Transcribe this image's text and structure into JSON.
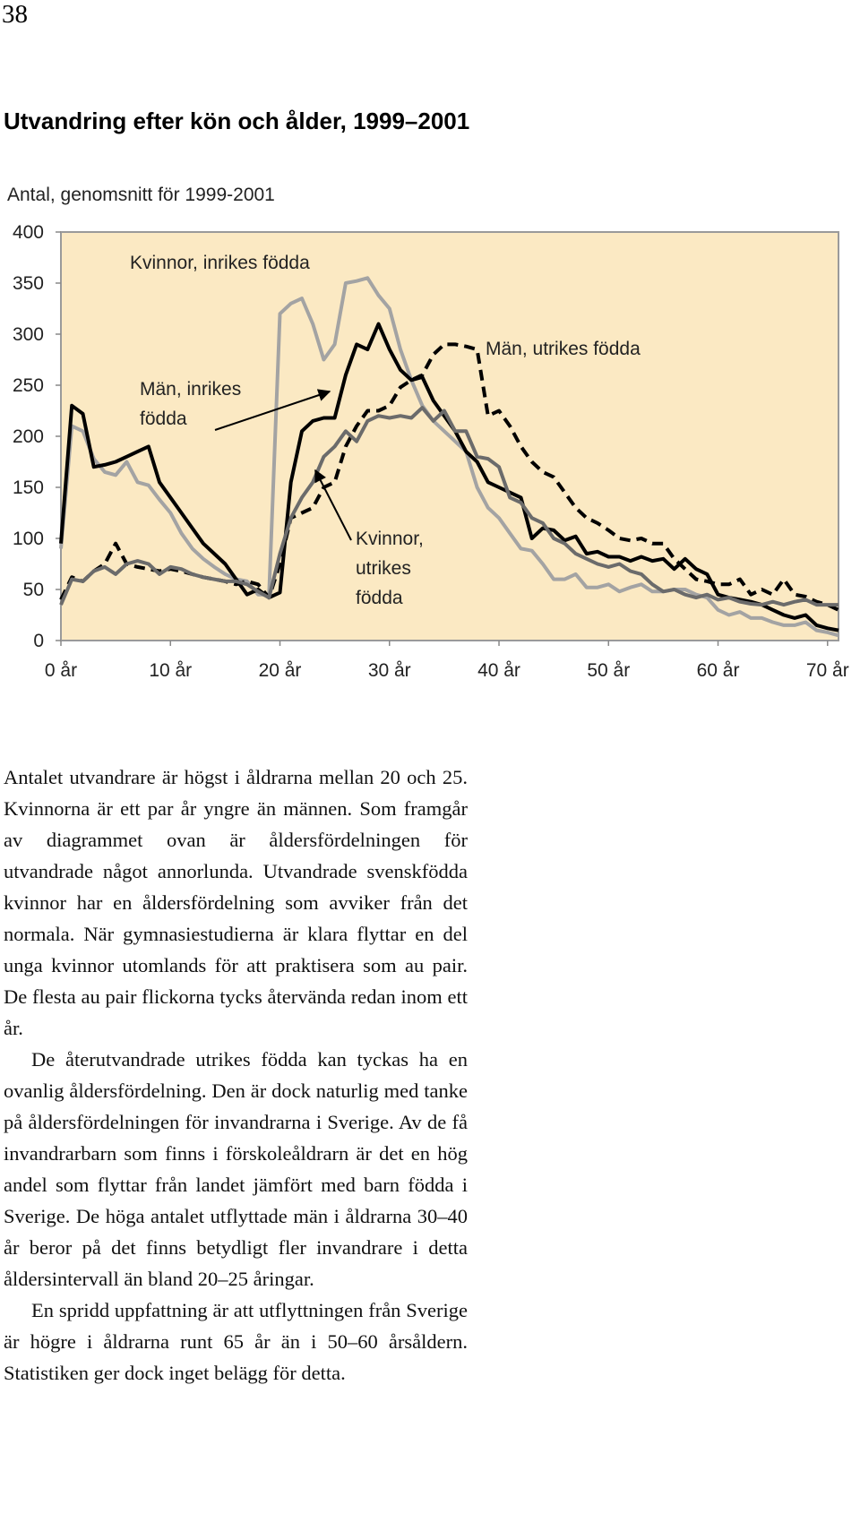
{
  "page_number": "38",
  "chart_data": {
    "type": "line",
    "title": "Utvandring efter kön och ålder, 1999–2001",
    "ylabel": "Antal, genomsnitt för 1999-2001",
    "x": [
      0,
      1,
      2,
      3,
      4,
      5,
      6,
      7,
      8,
      9,
      10,
      11,
      12,
      13,
      14,
      15,
      16,
      17,
      18,
      19,
      20,
      21,
      22,
      23,
      24,
      25,
      26,
      27,
      28,
      29,
      30,
      31,
      32,
      33,
      34,
      35,
      36,
      37,
      38,
      39,
      40,
      41,
      42,
      43,
      44,
      45,
      46,
      47,
      48,
      49,
      50,
      51,
      52,
      53,
      54,
      55,
      56,
      57,
      58,
      59,
      60,
      61,
      62,
      63,
      64,
      65,
      66,
      67,
      68,
      69,
      70,
      71
    ],
    "xlim": [
      0,
      71
    ],
    "xticks": [
      {
        "value": 0,
        "label": "0 år"
      },
      {
        "value": 10,
        "label": "10 år"
      },
      {
        "value": 20,
        "label": "20 år"
      },
      {
        "value": 30,
        "label": "30 år"
      },
      {
        "value": 40,
        "label": "40 år"
      },
      {
        "value": 50,
        "label": "50 år"
      },
      {
        "value": 60,
        "label": "60 år"
      },
      {
        "value": 70,
        "label": "70 år"
      }
    ],
    "ylim": [
      0,
      400
    ],
    "yticks": [
      0,
      50,
      100,
      150,
      200,
      250,
      300,
      350,
      400
    ],
    "grid": false,
    "background": "#fbe9c3",
    "series": [
      {
        "name": "Kvinnor, inrikes födda",
        "color": "#a3a3a3",
        "dashed": false,
        "values": [
          90,
          210,
          205,
          178,
          165,
          162,
          175,
          155,
          152,
          138,
          125,
          105,
          90,
          80,
          72,
          65,
          60,
          58,
          45,
          45,
          320,
          330,
          335,
          310,
          275,
          290,
          350,
          352,
          355,
          338,
          325,
          285,
          255,
          230,
          215,
          205,
          195,
          185,
          150,
          130,
          120,
          105,
          90,
          88,
          75,
          60,
          60,
          65,
          52,
          52,
          55,
          48,
          52,
          55,
          48,
          48,
          50,
          50,
          45,
          42,
          30,
          25,
          28,
          22,
          22,
          18,
          15,
          15,
          18,
          10,
          8,
          5
        ]
      },
      {
        "name": "Män, inrikes födda",
        "color": "#000000",
        "dashed": false,
        "values": [
          95,
          230,
          222,
          170,
          172,
          175,
          180,
          185,
          190,
          155,
          140,
          125,
          110,
          95,
          85,
          75,
          60,
          45,
          50,
          42,
          47,
          155,
          205,
          215,
          218,
          218,
          260,
          290,
          285,
          310,
          285,
          265,
          255,
          258,
          235,
          220,
          205,
          185,
          175,
          155,
          150,
          145,
          140,
          100,
          110,
          108,
          98,
          102,
          85,
          87,
          82,
          82,
          78,
          82,
          78,
          80,
          70,
          80,
          70,
          65,
          45,
          42,
          40,
          38,
          35,
          30,
          25,
          22,
          25,
          15,
          12,
          10
        ]
      },
      {
        "name": "Män, utrikes födda",
        "color": "#000000",
        "dashed": true,
        "values": [
          40,
          62,
          58,
          68,
          75,
          95,
          75,
          72,
          70,
          68,
          70,
          68,
          65,
          62,
          60,
          58,
          55,
          58,
          55,
          42,
          75,
          120,
          125,
          130,
          150,
          155,
          190,
          210,
          225,
          225,
          230,
          248,
          255,
          260,
          280,
          290,
          290,
          288,
          285,
          220,
          225,
          210,
          190,
          175,
          165,
          160,
          145,
          130,
          120,
          115,
          108,
          100,
          98,
          100,
          95,
          95,
          80,
          70,
          60,
          58,
          55,
          55,
          60,
          45,
          50,
          45,
          60,
          45,
          43,
          38,
          35,
          30
        ]
      },
      {
        "name": "Kvinnor, utrikes födda",
        "color": "#6b6b6b",
        "dashed": false,
        "values": [
          35,
          60,
          58,
          68,
          72,
          65,
          75,
          78,
          75,
          65,
          72,
          70,
          65,
          62,
          60,
          58,
          58,
          55,
          48,
          42,
          85,
          120,
          140,
          155,
          180,
          190,
          205,
          195,
          215,
          220,
          218,
          220,
          218,
          228,
          215,
          225,
          205,
          205,
          180,
          178,
          170,
          140,
          135,
          120,
          115,
          100,
          95,
          85,
          80,
          75,
          72,
          75,
          68,
          65,
          55,
          48,
          50,
          45,
          42,
          45,
          40,
          42,
          38,
          36,
          35,
          38,
          35,
          38,
          40,
          35,
          35,
          35
        ]
      }
    ]
  },
  "body": [
    "Antalet utvandrare är högst i åldrarna mellan 20 och 25. Kvinnorna är ett par år yngre än männen. Som framgår av diagrammet ovan är åldersfördelningen för utvandrade något annorlunda. Utvandrade svenskfödda kvinnor har en åldersfördelning som avviker från det normala. När gymnasiestudierna är klara flyttar en del unga kvinnor utomlands för att praktisera som au pair. De flesta au pair flickorna tycks återvända redan inom ett år.",
    "De återutvandrade utrikes födda kan tyckas ha en ovanlig åldersfördelning. Den är dock naturlig med tanke på åldersfördelningen för invandrarna i Sverige. Av de få invandrarbarn som finns i förskoleåldrarn är det en hög andel som flyttar från landet jämfört med barn födda i Sverige. De höga antalet utflyttade män i åldrarna 30–40 år beror på det finns betydligt fler invandrare i detta åldersintervall än bland 20–25 åringar.",
    "En spridd uppfattning är att utflyttningen från Sverige är högre i åldrarna runt 65 år än i 50–60 årsåldern. Statistiken ger dock inget belägg för detta."
  ]
}
